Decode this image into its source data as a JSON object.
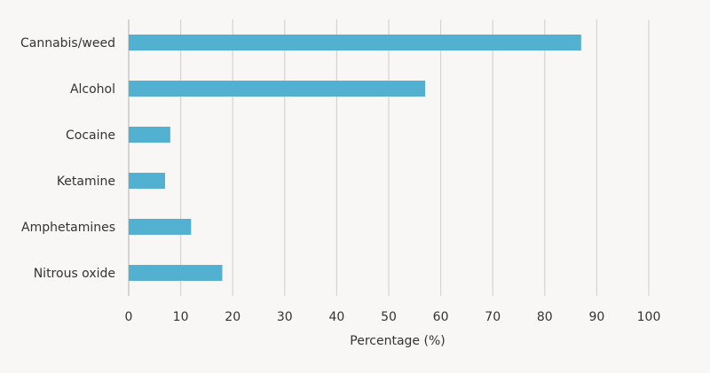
{
  "chart_data": {
    "type": "bar",
    "orientation": "horizontal",
    "categories": [
      "Cannabis/weed",
      "Alcohol",
      "Cocaine",
      "Ketamine",
      "Amphetamines",
      "Nitrous oxide"
    ],
    "values": [
      87,
      57,
      8,
      7,
      12,
      18
    ],
    "xlabel": "Percentage (%)",
    "ylabel": "",
    "xlim": [
      0,
      100
    ],
    "xticks": [
      "0",
      "10",
      "20",
      "30",
      "40",
      "50",
      "60",
      "70",
      "80",
      "90",
      "100"
    ],
    "grid": "vertical",
    "colors": {
      "bar": "#52b0d0",
      "grid": "#d4d4d4",
      "text": "#333333",
      "background": "#f8f7f5"
    }
  }
}
